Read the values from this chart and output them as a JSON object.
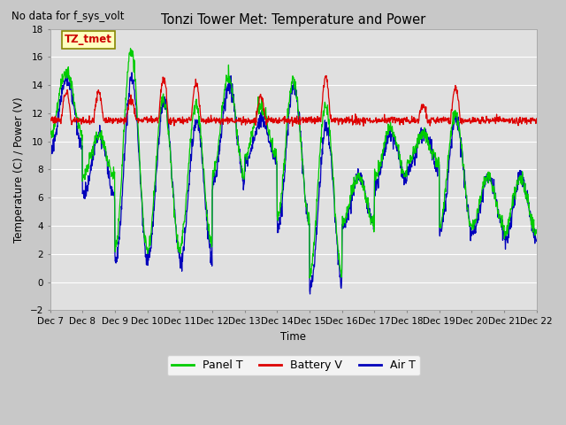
{
  "title": "Tonzi Tower Met: Temperature and Power",
  "xlabel": "Time",
  "ylabel": "Temperature (C) / Power (V)",
  "ylim": [
    -2,
    18
  ],
  "yticks": [
    -2,
    0,
    2,
    4,
    6,
    8,
    10,
    12,
    14,
    16,
    18
  ],
  "xlim": [
    0,
    15
  ],
  "no_data_text": "No data for f_sys_volt",
  "annotation_text": "TZ_tmet",
  "xtick_labels": [
    "Dec 7",
    "Dec 8",
    "Dec 9",
    "Dec 10",
    "Dec 11",
    "Dec 12",
    "Dec 13",
    "Dec 14",
    "Dec 15",
    "Dec 16",
    "Dec 17",
    "Dec 18",
    "Dec 19",
    "Dec 20",
    "Dec 21",
    "Dec 22"
  ],
  "legend_labels": [
    "Panel T",
    "Battery V",
    "Air T"
  ],
  "panel_color": "#00cc00",
  "battery_color": "#dd0000",
  "air_color": "#0000bb",
  "line_width": 0.9,
  "fig_bg": "#c8c8c8",
  "plot_bg": "#e0e0e0",
  "grid_color": "#ffffff",
  "panel_peaks": [
    15.0,
    10.5,
    16.5,
    13.0,
    12.5,
    14.5,
    12.5,
    14.3,
    12.5,
    7.5,
    11.0,
    10.5,
    12.0,
    7.5,
    7.5
  ],
  "panel_troughs": [
    10.5,
    7.5,
    2.3,
    2.3,
    2.5,
    7.5,
    9.0,
    4.5,
    0.5,
    4.2,
    7.5,
    8.5,
    4.0,
    4.0,
    3.5
  ],
  "air_peaks": [
    14.5,
    10.5,
    14.5,
    12.8,
    11.5,
    14.0,
    11.5,
    14.0,
    11.0,
    7.5,
    10.5,
    10.5,
    11.5,
    7.5,
    7.5
  ],
  "air_troughs": [
    9.5,
    6.0,
    1.5,
    1.8,
    1.5,
    7.0,
    8.5,
    4.0,
    -0.3,
    4.0,
    7.0,
    8.0,
    3.5,
    3.5,
    3.0
  ],
  "batt_base": 11.5,
  "batt_day_peaks": [
    13.5,
    13.5,
    13.0,
    14.5,
    14.2,
    11.5,
    13.2,
    11.5,
    14.5,
    11.5,
    11.5,
    12.5,
    13.8,
    11.5,
    11.5
  ]
}
